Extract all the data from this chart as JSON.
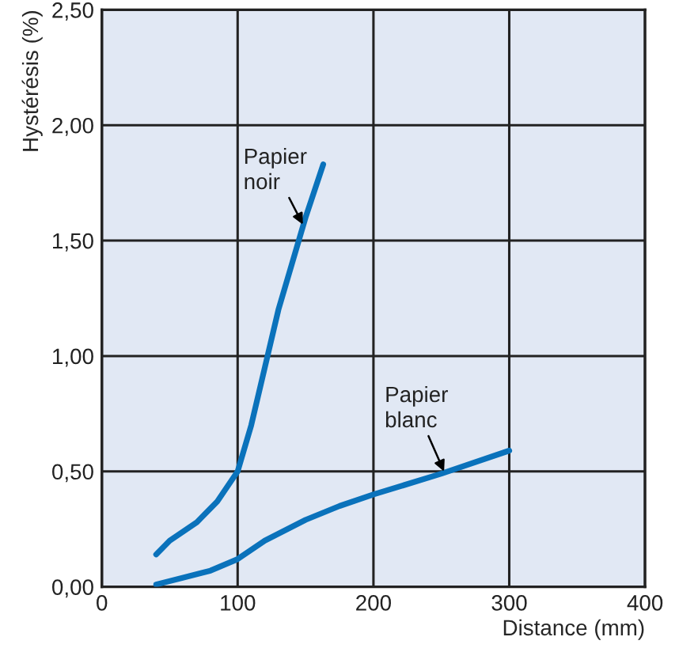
{
  "chart_data": {
    "type": "line",
    "xlabel": "Distance (mm)",
    "ylabel": "Hystérésis (%)",
    "series": [
      {
        "color": "#0a72bb",
        "x": [
          40,
          50,
          70,
          85,
          100,
          110,
          120,
          130,
          140,
          150,
          163
        ],
        "values": [
          0.14,
          0.2,
          0.28,
          0.37,
          0.5,
          0.7,
          0.95,
          1.2,
          1.4,
          1.6,
          1.83
        ]
      },
      {
        "color": "#0a72bb",
        "x": [
          40,
          60,
          80,
          100,
          120,
          150,
          175,
          200,
          250,
          300
        ],
        "values": [
          0.01,
          0.04,
          0.07,
          0.12,
          0.2,
          0.29,
          0.35,
          0.4,
          0.49,
          0.59
        ]
      }
    ],
    "annotations": [
      {
        "text": "Papier\nnoir",
        "x": 148,
        "y": 1.57
      },
      {
        "text": "Papier\nblanc",
        "x": 252,
        "y": 0.5
      }
    ],
    "xlim": [
      0,
      400
    ],
    "xticks": [
      0,
      100,
      200,
      300,
      400
    ],
    "ylim": [
      0,
      2.5
    ],
    "yticks": [
      {
        "value": 0,
        "label": "0,00"
      },
      {
        "value": 0.5,
        "label": "0,50"
      },
      {
        "value": 1,
        "label": "1,00"
      },
      {
        "value": 1.5,
        "label": "1,50"
      },
      {
        "value": 2,
        "label": "2,00"
      },
      {
        "value": 2.5,
        "label": "2,50"
      }
    ],
    "grid": true,
    "line_style": "solid",
    "marker": "none"
  }
}
